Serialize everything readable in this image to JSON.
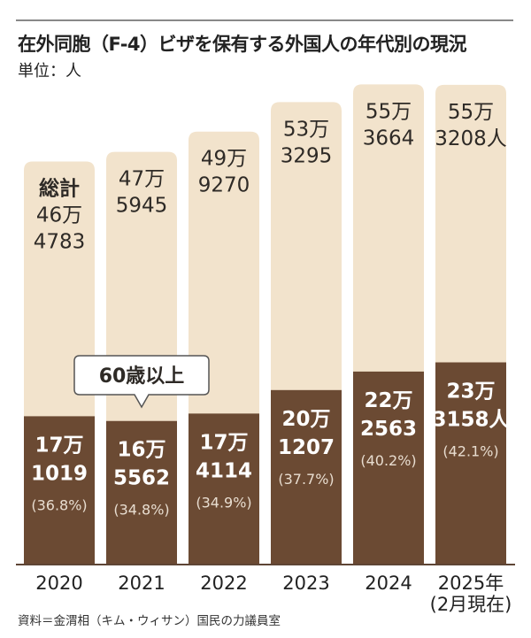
{
  "title": "在外同胞（F-4）ビザを保有する外国人の年代別の現況",
  "unit_label": "単位：人",
  "source": "資料＝金渭相（キム・ウィサン）国民の力議員室",
  "callout_label": "60歳以上",
  "total_label": "総計",
  "colors": {
    "total": "#f2e3cc",
    "senior": "#6b4a33",
    "baseline": "#5e4535"
  },
  "chart_data": {
    "type": "bar",
    "categories": [
      "2020",
      "2021",
      "2022",
      "2023",
      "2024",
      "2025年(2月現在)"
    ],
    "category_lines": [
      [
        "2020"
      ],
      [
        "2021"
      ],
      [
        "2022"
      ],
      [
        "2023"
      ],
      [
        "2024"
      ],
      [
        "2025年",
        "(2月現在)"
      ]
    ],
    "series": [
      {
        "name": "総計",
        "values": [
          464783,
          475945,
          499270,
          533295,
          553664,
          553208
        ]
      },
      {
        "name": "60歳以上",
        "values": [
          171019,
          165562,
          174114,
          201207,
          222563,
          233158
        ]
      }
    ],
    "total_labels": [
      [
        "46万",
        "4783"
      ],
      [
        "47万",
        "5945"
      ],
      [
        "49万",
        "9270"
      ],
      [
        "53万",
        "3295"
      ],
      [
        "55万",
        "3664"
      ],
      [
        "55万",
        "3208人"
      ]
    ],
    "senior_labels": [
      [
        "17万",
        "1019"
      ],
      [
        "16万",
        "5562"
      ],
      [
        "17万",
        "4114"
      ],
      [
        "20万",
        "1207"
      ],
      [
        "22万",
        "2563"
      ],
      [
        "23万",
        "3158人"
      ]
    ],
    "senior_pct_labels": [
      "(36.8%)",
      "(34.8%)",
      "(34.9%)",
      "(37.7%)",
      "(40.2%)",
      "(42.1%)"
    ],
    "ylim": [
      0,
      600000
    ]
  }
}
